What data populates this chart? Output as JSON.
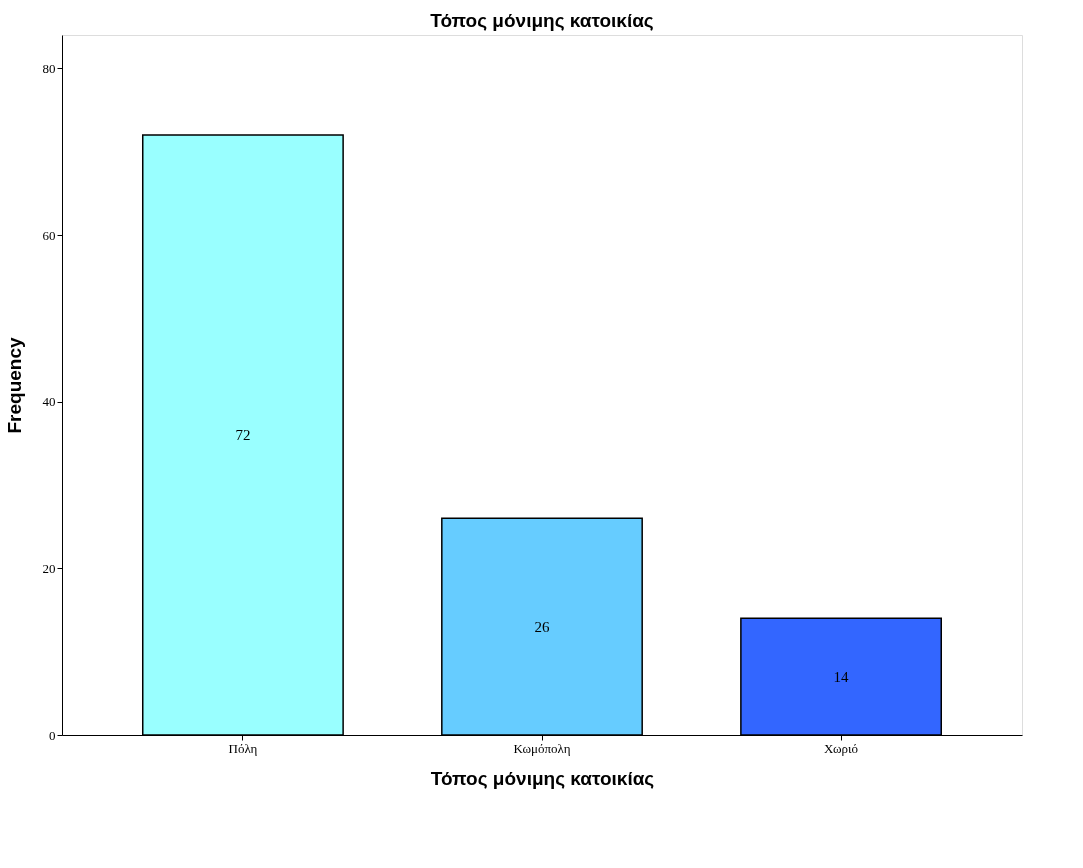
{
  "chart_data": {
    "type": "bar",
    "title": "Τόπος μόνιμης κατοικίας",
    "xlabel": "Τόπος μόνιμης κατοικίας",
    "ylabel": "Frequency",
    "categories": [
      "Πόλη",
      "Κωμόπολη",
      "Χωριό"
    ],
    "values": [
      72,
      26,
      14
    ],
    "colors": [
      "#99ffff",
      "#66ccff",
      "#3366ff"
    ],
    "ylim": [
      0,
      84
    ],
    "yticks": [
      0,
      20,
      40,
      60,
      80
    ],
    "data_labels": true,
    "grid": false,
    "legend": false
  }
}
